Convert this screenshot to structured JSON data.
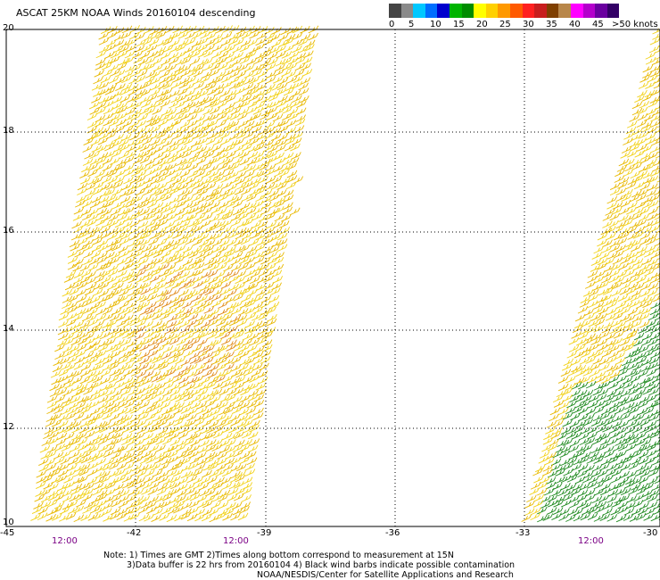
{
  "title": "ASCAT 25KM NOAA Winds 20160104 descending",
  "legend": {
    "colors": [
      "#444444",
      "#8a8a8a",
      "#00c8ff",
      "#006eff",
      "#0000cd",
      "#00b400",
      "#008c00",
      "#ffff00",
      "#ffd000",
      "#ff9900",
      "#ff5a00",
      "#ff2020",
      "#c81e1e",
      "#7f3f00",
      "#b8864a",
      "#ff00ff",
      "#b400cc",
      "#6a00a0",
      "#330066"
    ],
    "labels": [
      "0",
      "5",
      "10",
      "15",
      "20",
      "25",
      "30",
      "35",
      "40",
      "45",
      ">50 knots"
    ]
  },
  "axes": {
    "y_ticks": [
      "20",
      "18",
      "16",
      "14",
      "12",
      "10"
    ],
    "x_ticks": [
      "-45",
      "-42",
      "-39",
      "-36",
      "-33",
      "-30"
    ]
  },
  "times": [
    "12:00",
    "12:00",
    "12:00"
  ],
  "notes": [
    "Note: 1) Times are GMT 2)Times along bottom correspond to measurement at 15N",
    "3)Data buffer is 22 hrs from 20160104 4) Black wind barbs indicate possible contamination",
    "NOAA/NESDIS/Center for Satellite Applications and Research"
  ]
}
